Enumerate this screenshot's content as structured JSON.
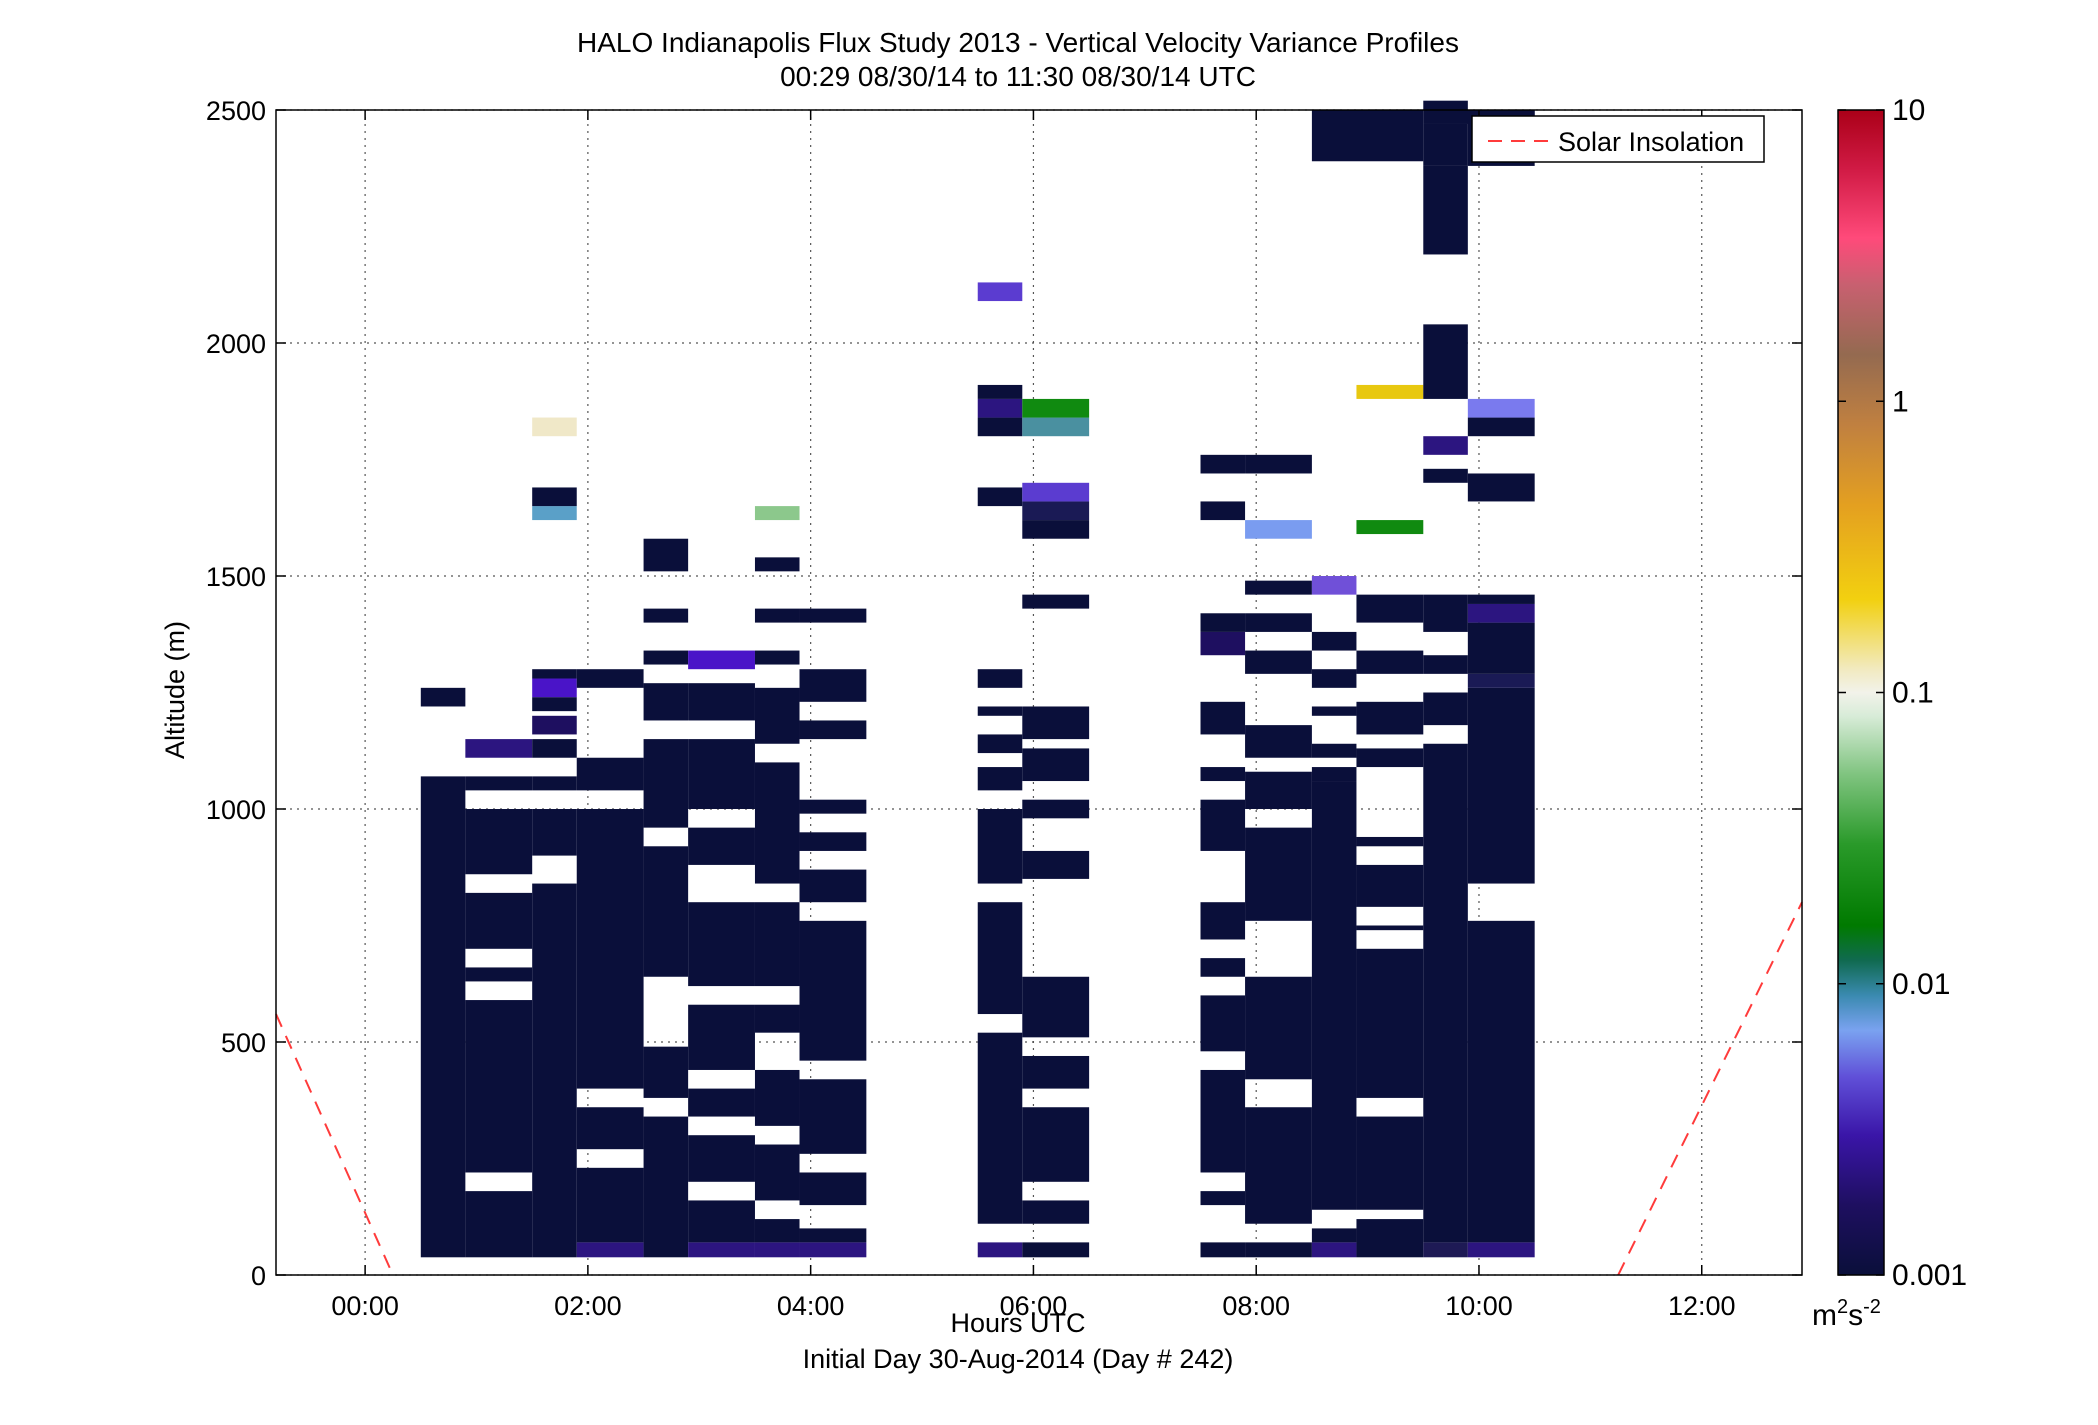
{
  "chart_data": {
    "type": "heatmap",
    "title": "HALO Indianapolis Flux Study 2013 - Vertical Velocity Variance Profiles",
    "subtitle": "00:29 08/30/14 to 11:30 08/30/14  UTC",
    "xlabel": "Hours UTC",
    "xlabel2": "Initial Day 30-Aug-2014 (Day # 242)",
    "ylabel": "Altitude (m)",
    "xlim": [
      -0.8,
      12.9
    ],
    "ylim": [
      0,
      2500
    ],
    "x_ticks": [
      0,
      2,
      4,
      6,
      8,
      10,
      12
    ],
    "x_tick_labels": [
      "00:00",
      "02:00",
      "04:00",
      "06:00",
      "08:00",
      "10:00",
      "12:00"
    ],
    "y_ticks": [
      0,
      500,
      1000,
      1500,
      2000,
      2500
    ],
    "y_tick_labels": [
      "0",
      "500",
      "1000",
      "1500",
      "2000",
      "2500"
    ],
    "grid": true,
    "legend": {
      "position": "top-right",
      "entries": [
        "Solar Insolation"
      ]
    },
    "colorbar": {
      "scale": "log",
      "range": [
        0.001,
        10
      ],
      "tick_values": [
        0.001,
        0.01,
        0.1,
        1,
        10
      ],
      "tick_labels": [
        "0.001",
        "0.01",
        "0.1",
        "1",
        "10"
      ],
      "unit_base": "m",
      "unit_base_exp": "2",
      "unit_s": "s",
      "unit_s_exp": "-2"
    },
    "cell_height_m": 38,
    "colors": {
      "background": "#ffffff",
      "default_cell": "#0a0f3a",
      "solar_line": "#ff3b3b",
      "grid": "#555555"
    },
    "columns": [
      {
        "x": [
          0.5,
          0.9
        ],
        "bands": [
          [
            38,
            1070
          ],
          [
            1220,
            1260
          ]
        ]
      },
      {
        "x": [
          0.9,
          1.5
        ],
        "bands": [
          [
            38,
            180
          ],
          [
            220,
            590
          ],
          [
            630,
            660
          ],
          [
            700,
            820
          ],
          [
            860,
            1000
          ],
          [
            1040,
            1070
          ],
          [
            1110,
            1150,
            "#2c1580"
          ]
        ]
      },
      {
        "x": [
          1.5,
          1.9
        ],
        "bands": [
          [
            38,
            840
          ],
          [
            900,
            1000
          ],
          [
            1040,
            1070
          ],
          [
            1110,
            1150
          ],
          [
            1160,
            1200,
            "#1e0f60"
          ],
          [
            1210,
            1240
          ],
          [
            1240,
            1280,
            "#4a14c8"
          ],
          [
            1280,
            1300
          ],
          [
            1620,
            1650,
            "#5aa0c8"
          ],
          [
            1650,
            1690
          ],
          [
            1800,
            1840,
            "#f0e8c8"
          ]
        ]
      },
      {
        "x": [
          1.9,
          2.5
        ],
        "bands": [
          [
            38,
            70,
            "#2c1580"
          ],
          [
            70,
            230
          ],
          [
            270,
            360
          ],
          [
            400,
            1000
          ],
          [
            1040,
            1110
          ],
          [
            1260,
            1300
          ]
        ]
      },
      {
        "x": [
          2.5,
          2.9
        ],
        "bands": [
          [
            38,
            340
          ],
          [
            380,
            490
          ],
          [
            640,
            920
          ],
          [
            960,
            1150
          ],
          [
            1190,
            1270
          ],
          [
            1310,
            1340
          ],
          [
            1400,
            1430
          ],
          [
            1510,
            1580
          ]
        ]
      },
      {
        "x": [
          2.9,
          3.5
        ],
        "bands": [
          [
            38,
            70,
            "#2c1580"
          ],
          [
            70,
            160
          ],
          [
            200,
            300
          ],
          [
            340,
            400
          ],
          [
            440,
            580
          ],
          [
            620,
            800
          ],
          [
            880,
            960
          ],
          [
            1000,
            1150
          ],
          [
            1190,
            1270
          ],
          [
            1300,
            1340,
            "#4a14c8"
          ]
        ]
      },
      {
        "x": [
          3.5,
          3.9
        ],
        "bands": [
          [
            38,
            70,
            "#2c1580"
          ],
          [
            70,
            120
          ],
          [
            160,
            280
          ],
          [
            320,
            440
          ],
          [
            520,
            580
          ],
          [
            620,
            800
          ],
          [
            840,
            1100
          ],
          [
            1140,
            1260
          ],
          [
            1310,
            1340
          ],
          [
            1400,
            1430
          ],
          [
            1510,
            1540
          ],
          [
            1620,
            1650,
            "#8cc88c"
          ]
        ]
      },
      {
        "x": [
          3.9,
          4.5
        ],
        "bands": [
          [
            38,
            70,
            "#2c1580"
          ],
          [
            70,
            100
          ],
          [
            150,
            220
          ],
          [
            260,
            420
          ],
          [
            460,
            760
          ],
          [
            800,
            870
          ],
          [
            910,
            950
          ],
          [
            990,
            1020
          ],
          [
            1150,
            1190
          ],
          [
            1230,
            1300
          ],
          [
            1400,
            1430
          ]
        ]
      },
      {
        "x": [
          5.5,
          5.9
        ],
        "bands": [
          [
            38,
            70,
            "#2c1580"
          ],
          [
            110,
            520
          ],
          [
            560,
            800
          ],
          [
            840,
            1000
          ],
          [
            1040,
            1090
          ],
          [
            1120,
            1160
          ],
          [
            1200,
            1220
          ],
          [
            1260,
            1300
          ],
          [
            1650,
            1690
          ],
          [
            1800,
            1840
          ],
          [
            1840,
            1880,
            "#2c1580"
          ],
          [
            1880,
            1910
          ],
          [
            2090,
            2130,
            "#5b3cd0"
          ]
        ]
      },
      {
        "x": [
          5.9,
          6.5
        ],
        "bands": [
          [
            38,
            70
          ],
          [
            110,
            160
          ],
          [
            200,
            360
          ],
          [
            400,
            470
          ],
          [
            510,
            640
          ],
          [
            850,
            910
          ],
          [
            980,
            1020
          ],
          [
            1060,
            1130
          ],
          [
            1150,
            1220
          ],
          [
            1430,
            1460
          ],
          [
            1580,
            1620
          ],
          [
            1620,
            1660,
            "#1a1a55"
          ],
          [
            1660,
            1700,
            "#5b3cd0"
          ],
          [
            1800,
            1840,
            "#4a90a0"
          ],
          [
            1840,
            1880,
            "#108a10"
          ]
        ]
      },
      {
        "x": [
          7.5,
          7.9
        ],
        "bands": [
          [
            38,
            70
          ],
          [
            150,
            180
          ],
          [
            220,
            440
          ],
          [
            480,
            600
          ],
          [
            640,
            680
          ],
          [
            720,
            800
          ],
          [
            910,
            1020
          ],
          [
            1060,
            1090
          ],
          [
            1160,
            1230
          ],
          [
            1330,
            1380,
            "#1e0f60"
          ],
          [
            1380,
            1420
          ],
          [
            1620,
            1660
          ],
          [
            1720,
            1760
          ]
        ]
      },
      {
        "x": [
          7.9,
          8.5
        ],
        "bands": [
          [
            38,
            70
          ],
          [
            110,
            360
          ],
          [
            420,
            640
          ],
          [
            760,
            960
          ],
          [
            1000,
            1080
          ],
          [
            1110,
            1180
          ],
          [
            1290,
            1340
          ],
          [
            1380,
            1420
          ],
          [
            1460,
            1490
          ],
          [
            1580,
            1620,
            "#7a9cf0"
          ],
          [
            1720,
            1760
          ]
        ]
      },
      {
        "x": [
          8.5,
          8.9
        ],
        "bands": [
          [
            38,
            70,
            "#2c1580"
          ],
          [
            70,
            100
          ],
          [
            140,
            1060
          ],
          [
            1060,
            1090
          ],
          [
            1110,
            1140
          ],
          [
            1200,
            1220
          ],
          [
            1260,
            1300
          ],
          [
            1340,
            1380
          ],
          [
            1460,
            1500,
            "#7050d8"
          ]
        ]
      },
      {
        "x": [
          8.9,
          9.5
        ],
        "bands": [
          [
            38,
            120
          ],
          [
            140,
            340
          ],
          [
            380,
            700
          ],
          [
            740,
            750
          ],
          [
            790,
            880
          ],
          [
            920,
            940
          ],
          [
            1090,
            1130
          ],
          [
            1160,
            1230
          ],
          [
            1290,
            1340
          ],
          [
            1400,
            1460
          ],
          [
            1590,
            1620,
            "#108a10"
          ],
          [
            1880,
            1910,
            "#e8c810"
          ]
        ]
      },
      {
        "x": [
          9.5,
          9.9
        ],
        "bands": [
          [
            38,
            70,
            "#1e1a55"
          ],
          [
            70,
            1140
          ],
          [
            1180,
            1250
          ],
          [
            1290,
            1330
          ],
          [
            1380,
            1460
          ],
          [
            1700,
            1730
          ],
          [
            1760,
            1800,
            "#2c1580"
          ],
          [
            1880,
            2040
          ],
          [
            2190,
            2380
          ],
          [
            2380,
            2470
          ],
          [
            2500,
            2520
          ]
        ]
      },
      {
        "x": [
          9.9,
          10.5
        ],
        "bands": [
          [
            38,
            70,
            "#2c1580"
          ],
          [
            70,
            760
          ],
          [
            840,
            1260
          ],
          [
            1260,
            1290,
            "#1a1a55"
          ],
          [
            1290,
            1400
          ],
          [
            1400,
            1440,
            "#2c1580"
          ],
          [
            1440,
            1460
          ],
          [
            1660,
            1720
          ],
          [
            1800,
            1840
          ],
          [
            1840,
            1880,
            "#7a7aee"
          ],
          [
            2380,
            2500
          ]
        ]
      },
      {
        "x": [
          8.5,
          9.5
        ],
        "bands": [
          [
            2390,
            2500
          ]
        ]
      },
      {
        "x": [
          9.5,
          10.5
        ],
        "bands": [
          [
            2470,
            2500
          ]
        ]
      }
    ],
    "solar_insolation": [
      {
        "x": [
          -0.8,
          0.25
        ],
        "y": [
          560,
          0
        ]
      },
      {
        "x": [
          11.25,
          12.9
        ],
        "y": [
          0,
          800
        ]
      }
    ]
  }
}
